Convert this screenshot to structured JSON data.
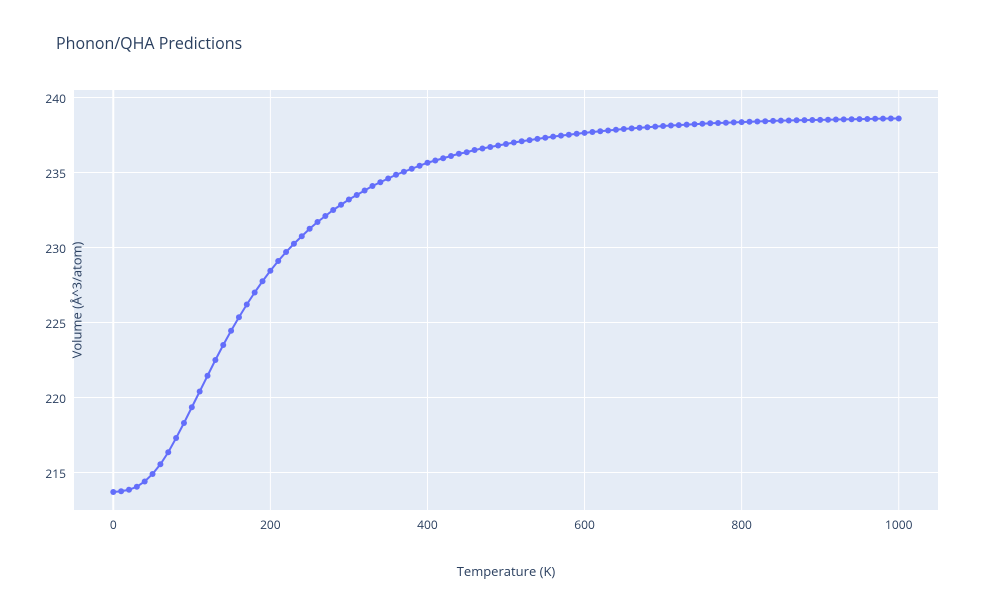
{
  "chart": {
    "type": "line",
    "title": "Phonon/QHA Predictions",
    "title_fontsize": 16,
    "title_color": "#2a3f5f",
    "xlabel": "Temperature (K)",
    "ylabel": "Volume (Å^3/atom)",
    "label_fontsize": 13,
    "label_color": "#2a3f5f",
    "tick_fontsize": 12,
    "tick_color": "#2a3f5f",
    "xlim": [
      -50,
      1050
    ],
    "ylim": [
      212.5,
      240.5
    ],
    "xticks": [
      0,
      200,
      400,
      600,
      800,
      1000
    ],
    "yticks": [
      215,
      220,
      225,
      230,
      235,
      240
    ],
    "background_color": "#ffffff",
    "plot_bgcolor": "#e5ecf6",
    "grid_color": "#ffffff",
    "grid_width": 1,
    "zeroline_color": "#ffffff",
    "zeroline_width": 2,
    "line_color": "#636efa",
    "line_width": 2,
    "marker_color": "#636efa",
    "marker_size": 6,
    "marker_style": "circle",
    "x": [
      0,
      10,
      20,
      30,
      40,
      50,
      60,
      70,
      80,
      90,
      100,
      110,
      120,
      130,
      140,
      150,
      160,
      170,
      180,
      190,
      200,
      210,
      220,
      230,
      240,
      250,
      260,
      270,
      280,
      290,
      300,
      310,
      320,
      330,
      340,
      350,
      360,
      370,
      380,
      390,
      400,
      410,
      420,
      430,
      440,
      450,
      460,
      470,
      480,
      490,
      500,
      510,
      520,
      530,
      540,
      550,
      560,
      570,
      580,
      590,
      600,
      610,
      620,
      630,
      640,
      650,
      660,
      670,
      680,
      690,
      700,
      710,
      720,
      730,
      740,
      750,
      760,
      770,
      780,
      790,
      800,
      810,
      820,
      830,
      840,
      850,
      860,
      870,
      880,
      890,
      900,
      910,
      920,
      930,
      940,
      950,
      960,
      970,
      980,
      990,
      1000
    ],
    "y": [
      213.7,
      213.75,
      213.85,
      214.05,
      214.4,
      214.9,
      215.55,
      216.35,
      217.3,
      218.3,
      219.35,
      220.4,
      221.45,
      222.5,
      223.5,
      224.45,
      225.35,
      226.2,
      227.0,
      227.75,
      228.45,
      229.1,
      229.7,
      230.25,
      230.75,
      231.25,
      231.7,
      232.1,
      232.5,
      232.85,
      233.2,
      233.5,
      233.8,
      234.1,
      234.35,
      234.6,
      234.85,
      235.05,
      235.25,
      235.45,
      235.65,
      235.8,
      235.95,
      236.1,
      236.25,
      236.35,
      236.5,
      236.6,
      236.7,
      236.8,
      236.9,
      237.0,
      237.08,
      237.16,
      237.24,
      237.32,
      237.39,
      237.46,
      237.52,
      237.58,
      237.64,
      237.7,
      237.75,
      237.8,
      237.85,
      237.9,
      237.94,
      237.98,
      238.02,
      238.06,
      238.1,
      238.13,
      238.16,
      238.19,
      238.22,
      238.25,
      238.28,
      238.3,
      238.32,
      238.34,
      238.36,
      238.38,
      238.4,
      238.42,
      238.44,
      238.46,
      238.47,
      238.48,
      238.49,
      238.5,
      238.51,
      238.52,
      238.53,
      238.54,
      238.55,
      238.56,
      238.57,
      238.58,
      238.59,
      238.6,
      238.6
    ]
  }
}
